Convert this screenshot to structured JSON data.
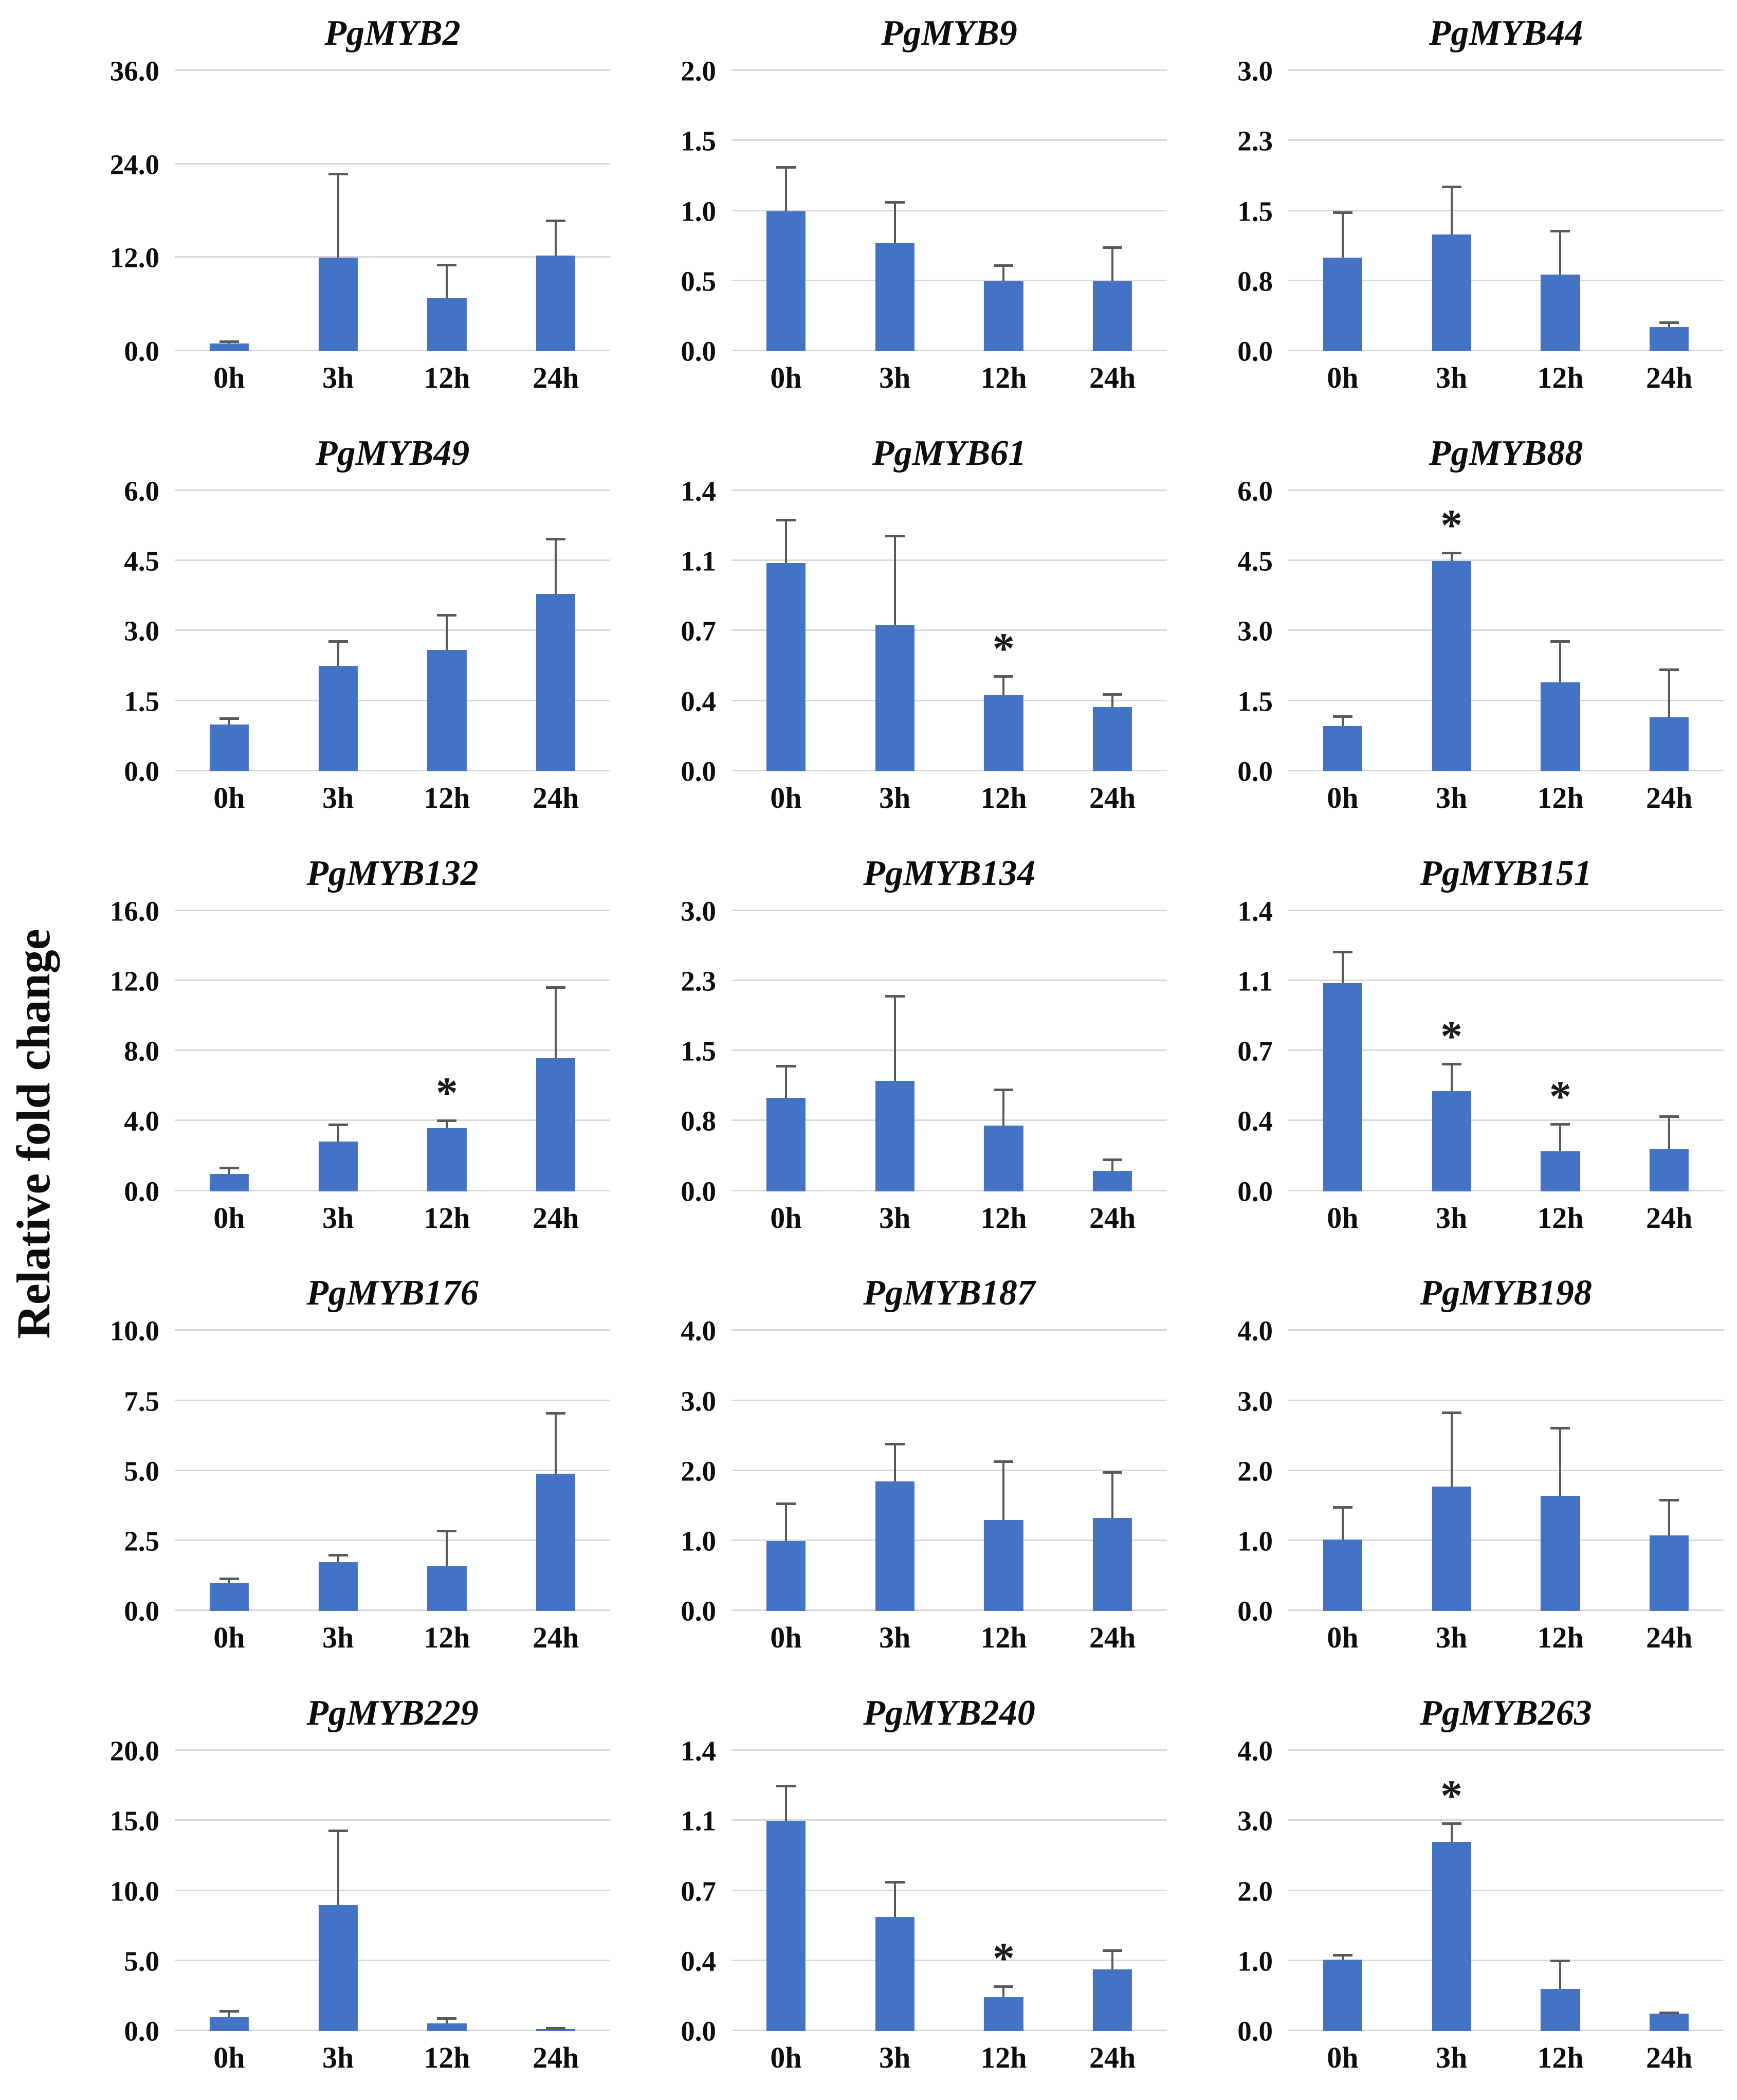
{
  "ylabel": "Relative fold change",
  "categories": [
    "0h",
    "3h",
    "12h",
    "24h"
  ],
  "style": {
    "bar_color": "#4472C4",
    "error_color": "#595959",
    "gridline_color": "#D9D9D9",
    "text_color": "#0D0D0D"
  },
  "chart_data": [
    {
      "type": "bar",
      "title": "PgMYB2",
      "ymax": 36,
      "ylim": [
        0,
        36
      ],
      "grid": true,
      "legend": "none",
      "ytick_labels": [
        "36.0",
        "24.0",
        "12.0",
        "0.0"
      ],
      "values": [
        1.0,
        12.0,
        6.8,
        12.3
      ],
      "errors": [
        0.4,
        10.9,
        4.4,
        4.6
      ],
      "asterisks": [
        false,
        false,
        false,
        false
      ]
    },
    {
      "type": "bar",
      "title": "PgMYB9",
      "ymax": 2.0,
      "ylim": [
        0,
        2
      ],
      "grid": true,
      "legend": "none",
      "ytick_labels": [
        "2.0",
        "1.5",
        "1.0",
        "0.5",
        "0.0"
      ],
      "values": [
        1.0,
        0.77,
        0.5,
        0.5
      ],
      "errors": [
        0.32,
        0.3,
        0.12,
        0.25
      ],
      "asterisks": [
        false,
        false,
        false,
        false
      ]
    },
    {
      "type": "bar",
      "title": "PgMYB44",
      "ymax": 3.0,
      "ylim": [
        0,
        3
      ],
      "grid": true,
      "legend": "none",
      "ytick_labels": [
        "3.0",
        "2.3",
        "1.5",
        "0.8",
        "0.0"
      ],
      "values": [
        1.0,
        1.25,
        0.82,
        0.26
      ],
      "errors": [
        0.5,
        0.52,
        0.48,
        0.06
      ],
      "asterisks": [
        false,
        false,
        false,
        false
      ]
    },
    {
      "type": "bar",
      "title": "PgMYB49",
      "ymax": 6.0,
      "ylim": [
        0,
        6
      ],
      "grid": true,
      "legend": "none",
      "ytick_labels": [
        "6.0",
        "4.5",
        "3.0",
        "1.5",
        "0.0"
      ],
      "values": [
        1.0,
        2.25,
        2.6,
        3.8
      ],
      "errors": [
        0.15,
        0.55,
        0.77,
        1.2
      ],
      "asterisks": [
        false,
        false,
        false,
        false
      ]
    },
    {
      "type": "bar",
      "title": "PgMYB61",
      "ymax": 1.4,
      "ylim": [
        0,
        1.4
      ],
      "grid": true,
      "legend": "none",
      "ytick_labels": [
        "1.4",
        "1.1",
        "0.7",
        "0.4",
        "0.0"
      ],
      "values": [
        1.04,
        0.73,
        0.38,
        0.32
      ],
      "errors": [
        0.22,
        0.45,
        0.1,
        0.07
      ],
      "asterisks": [
        false,
        false,
        true,
        false
      ]
    },
    {
      "type": "bar",
      "title": "PgMYB88",
      "ymax": 6.0,
      "ylim": [
        0,
        6
      ],
      "grid": true,
      "legend": "none",
      "ytick_labels": [
        "6.0",
        "4.5",
        "3.0",
        "1.5",
        "0.0"
      ],
      "values": [
        0.97,
        4.5,
        1.9,
        1.15
      ],
      "errors": [
        0.23,
        0.2,
        0.9,
        1.05
      ],
      "asterisks": [
        false,
        true,
        false,
        false
      ]
    },
    {
      "type": "bar",
      "title": "PgMYB132",
      "ymax": 16,
      "ylim": [
        0,
        16
      ],
      "grid": true,
      "legend": "none",
      "ytick_labels": [
        "16.0",
        "12.0",
        "8.0",
        "4.0",
        "0.0"
      ],
      "values": [
        1.0,
        2.85,
        3.6,
        7.6
      ],
      "errors": [
        0.4,
        1.0,
        0.5,
        4.1
      ],
      "asterisks": [
        false,
        false,
        true,
        false
      ]
    },
    {
      "type": "bar",
      "title": "PgMYB134",
      "ymax": 3.0,
      "ylim": [
        0,
        3
      ],
      "grid": true,
      "legend": "none",
      "ytick_labels": [
        "3.0",
        "2.3",
        "1.5",
        "0.8",
        "0.0"
      ],
      "values": [
        1.0,
        1.18,
        0.7,
        0.22
      ],
      "errors": [
        0.35,
        0.92,
        0.4,
        0.13
      ],
      "asterisks": [
        false,
        false,
        false,
        false
      ]
    },
    {
      "type": "bar",
      "title": "PgMYB151",
      "ymax": 1.4,
      "ylim": [
        0,
        1.4
      ],
      "grid": true,
      "legend": "none",
      "ytick_labels": [
        "1.4",
        "1.1",
        "0.7",
        "0.4",
        "0.0"
      ],
      "values": [
        1.04,
        0.5,
        0.2,
        0.21
      ],
      "errors": [
        0.16,
        0.14,
        0.14,
        0.17
      ],
      "asterisks": [
        false,
        true,
        true,
        false
      ]
    },
    {
      "type": "bar",
      "title": "PgMYB176",
      "ymax": 10,
      "ylim": [
        0,
        10
      ],
      "grid": true,
      "legend": "none",
      "ytick_labels": [
        "10.0",
        "7.5",
        "5.0",
        "2.5",
        "0.0"
      ],
      "values": [
        1.0,
        1.75,
        1.6,
        4.9
      ],
      "errors": [
        0.2,
        0.3,
        1.3,
        2.2
      ],
      "asterisks": [
        false,
        false,
        false,
        false
      ]
    },
    {
      "type": "bar",
      "title": "PgMYB187",
      "ymax": 4.0,
      "ylim": [
        0,
        4
      ],
      "grid": true,
      "legend": "none",
      "ytick_labels": [
        "4.0",
        "3.0",
        "2.0",
        "1.0",
        "0.0"
      ],
      "values": [
        1.0,
        1.85,
        1.3,
        1.33
      ],
      "errors": [
        0.55,
        0.55,
        0.85,
        0.67
      ],
      "asterisks": [
        false,
        false,
        false,
        false
      ]
    },
    {
      "type": "bar",
      "title": "PgMYB198",
      "ymax": 4.0,
      "ylim": [
        0,
        4
      ],
      "grid": true,
      "legend": "none",
      "ytick_labels": [
        "4.0",
        "3.0",
        "2.0",
        "1.0",
        "0.0"
      ],
      "values": [
        1.02,
        1.78,
        1.65,
        1.08
      ],
      "errors": [
        0.48,
        1.07,
        0.98,
        0.52
      ],
      "asterisks": [
        false,
        false,
        false,
        false
      ]
    },
    {
      "type": "bar",
      "title": "PgMYB229",
      "ymax": 20,
      "ylim": [
        0,
        20
      ],
      "grid": true,
      "legend": "none",
      "ytick_labels": [
        "20.0",
        "15.0",
        "10.0",
        "5.0",
        "0.0"
      ],
      "values": [
        1.0,
        9.0,
        0.55,
        0.15
      ],
      "errors": [
        0.5,
        5.4,
        0.45,
        0.15
      ],
      "asterisks": [
        false,
        false,
        false,
        false
      ]
    },
    {
      "type": "bar",
      "title": "PgMYB240",
      "ymax": 1.4,
      "ylim": [
        0,
        1.4
      ],
      "grid": true,
      "legend": "none",
      "ytick_labels": [
        "1.4",
        "1.1",
        "0.7",
        "0.4",
        "0.0"
      ],
      "values": [
        1.05,
        0.57,
        0.17,
        0.31
      ],
      "errors": [
        0.18,
        0.18,
        0.06,
        0.1
      ],
      "asterisks": [
        false,
        false,
        true,
        false
      ]
    },
    {
      "type": "bar",
      "title": "PgMYB263",
      "ymax": 4.0,
      "ylim": [
        0,
        4
      ],
      "grid": true,
      "legend": "none",
      "ytick_labels": [
        "4.0",
        "3.0",
        "2.0",
        "1.0",
        "0.0"
      ],
      "values": [
        1.02,
        2.7,
        0.6,
        0.25
      ],
      "errors": [
        0.08,
        0.28,
        0.42,
        0.03
      ],
      "asterisks": [
        false,
        true,
        false,
        false
      ]
    }
  ]
}
